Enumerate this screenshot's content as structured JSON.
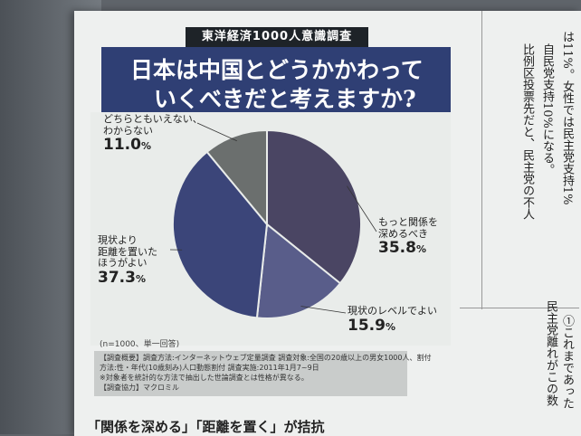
{
  "header": {
    "tag": "東洋経済1000人意識調査"
  },
  "title": {
    "line1": "日本は中国とどうかかわって",
    "line2": "いくべきだと考えますか?"
  },
  "chart_data": {
    "type": "pie",
    "title": "日本は中国とどうかかわっていくべきだと考えますか?",
    "slices": [
      {
        "label": "もっと関係を\n深めるべき",
        "value": 35.8,
        "display": "35.8",
        "color": "#4a4563"
      },
      {
        "label": "現状のレベルでよい",
        "value": 15.9,
        "display": "15.9",
        "color": "#595d8a"
      },
      {
        "label": "現状より\n距離を置いた\nほうがよい",
        "value": 37.3,
        "display": "37.3",
        "color": "#3b4579"
      },
      {
        "label": "どちらともいえない、\nわからない",
        "value": 11.0,
        "display": "11.0",
        "color": "#6b6f6e"
      }
    ],
    "unit": "%"
  },
  "notes": {
    "sample": "(n=1000、単一回答)",
    "survey_line1": "【調査概要】調査方法:インターネットウェブ定量調査 調査対象:全国の20歳以上の男女1000人、割付",
    "survey_line2": "方法:性・年代(10歳刻み)人口動態割付 調査実施:2011年1月7~9日",
    "survey_line3": "※対象者を統計的な方法で抽出した世論調査とは性格が異なる。",
    "survey_line4": "【調査協力】マクロミル"
  },
  "bottom_heading": "「関係を深める」「距離を置く」が拮抗",
  "right_columns": {
    "col1": "は11%。女性では民主党支持1%",
    "col2": "自民党支持10%になる。",
    "col3": "比例区投票先だと、民主党の不人",
    "col4": "民主党離れがこの数",
    "col5": "①これまであった"
  }
}
